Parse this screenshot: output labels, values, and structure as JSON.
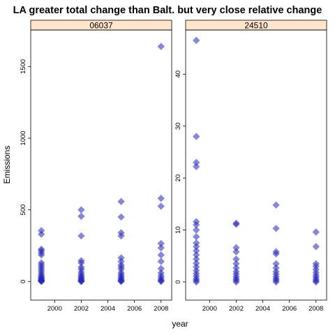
{
  "chart_data": {
    "type": "scatter",
    "title": "LA greater total change than Balt. but very close relative change",
    "xlabel": "year",
    "ylabel": "Emissions",
    "marker_color": "#2424b8",
    "strip_color": "#ffe5cc",
    "panels": [
      {
        "label": "06037",
        "xlim": [
          1998.2,
          2008.8
        ],
        "ylim": [
          -130,
          1755
        ],
        "x_ticks": [
          2000,
          2002,
          2004,
          2006,
          2008
        ],
        "y_ticks": [
          0,
          500,
          1000,
          1500
        ],
        "points": [
          [
            1999,
            355
          ],
          [
            1999,
            330
          ],
          [
            1999,
            225
          ],
          [
            1999,
            215
          ],
          [
            1999,
            200
          ],
          [
            1999,
            185
          ],
          [
            1999,
            130
          ],
          [
            1999,
            115
          ],
          [
            1999,
            100
          ],
          [
            1999,
            85
          ],
          [
            1999,
            70
          ],
          [
            1999,
            55
          ],
          [
            1999,
            42
          ],
          [
            1999,
            32
          ],
          [
            1999,
            25
          ],
          [
            1999,
            18
          ],
          [
            1999,
            12
          ],
          [
            1999,
            8
          ],
          [
            1999,
            5
          ],
          [
            1999,
            2
          ],
          [
            1999,
            0
          ],
          [
            2002,
            500
          ],
          [
            2002,
            455
          ],
          [
            2002,
            318
          ],
          [
            2002,
            145
          ],
          [
            2002,
            130
          ],
          [
            2002,
            100
          ],
          [
            2002,
            85
          ],
          [
            2002,
            65
          ],
          [
            2002,
            50
          ],
          [
            2002,
            38
          ],
          [
            2002,
            28
          ],
          [
            2002,
            20
          ],
          [
            2002,
            12
          ],
          [
            2002,
            6
          ],
          [
            2002,
            2
          ],
          [
            2002,
            0
          ],
          [
            2005,
            558
          ],
          [
            2005,
            450
          ],
          [
            2005,
            340
          ],
          [
            2005,
            318
          ],
          [
            2005,
            165
          ],
          [
            2005,
            140
          ],
          [
            2005,
            115
          ],
          [
            2005,
            100
          ],
          [
            2005,
            85
          ],
          [
            2005,
            62
          ],
          [
            2005,
            48
          ],
          [
            2005,
            35
          ],
          [
            2005,
            25
          ],
          [
            2005,
            15
          ],
          [
            2005,
            8
          ],
          [
            2005,
            3
          ],
          [
            2005,
            0
          ],
          [
            2008,
            1640
          ],
          [
            2008,
            580
          ],
          [
            2008,
            525
          ],
          [
            2008,
            265
          ],
          [
            2008,
            235
          ],
          [
            2008,
            185
          ],
          [
            2008,
            140
          ],
          [
            2008,
            90
          ],
          [
            2008,
            60
          ],
          [
            2008,
            40
          ],
          [
            2008,
            25
          ],
          [
            2008,
            12
          ],
          [
            2008,
            5
          ],
          [
            2008,
            0
          ]
        ]
      },
      {
        "label": "24510",
        "xlim": [
          1998.2,
          2008.8
        ],
        "ylim": [
          -3.5,
          48.5
        ],
        "x_ticks": [
          2000,
          2002,
          2004,
          2006,
          2008
        ],
        "y_ticks": [
          0,
          10,
          20,
          30,
          40
        ],
        "points": [
          [
            1999,
            46.5
          ],
          [
            1999,
            28
          ],
          [
            1999,
            23
          ],
          [
            1999,
            22.2
          ],
          [
            1999,
            11.6
          ],
          [
            1999,
            11
          ],
          [
            1999,
            10
          ],
          [
            1999,
            8.7
          ],
          [
            1999,
            7.5
          ],
          [
            1999,
            6.8
          ],
          [
            1999,
            6
          ],
          [
            1999,
            5.2
          ],
          [
            1999,
            4.4
          ],
          [
            1999,
            3.6
          ],
          [
            1999,
            2.9
          ],
          [
            1999,
            2.2
          ],
          [
            1999,
            1.6
          ],
          [
            1999,
            1.1
          ],
          [
            1999,
            0.6
          ],
          [
            1999,
            0.3
          ],
          [
            1999,
            0
          ],
          [
            2002,
            11.3
          ],
          [
            2002,
            11.1
          ],
          [
            2002,
            6.6
          ],
          [
            2002,
            5.8
          ],
          [
            2002,
            4.4
          ],
          [
            2002,
            3.5
          ],
          [
            2002,
            2.7
          ],
          [
            2002,
            2
          ],
          [
            2002,
            1.5
          ],
          [
            2002,
            1
          ],
          [
            2002,
            0.6
          ],
          [
            2002,
            0.3
          ],
          [
            2002,
            0
          ],
          [
            2005,
            14.8
          ],
          [
            2005,
            10.3
          ],
          [
            2005,
            5.8
          ],
          [
            2005,
            5.4
          ],
          [
            2005,
            3.5
          ],
          [
            2005,
            2.7
          ],
          [
            2005,
            2
          ],
          [
            2005,
            1.5
          ],
          [
            2005,
            1
          ],
          [
            2005,
            0.6
          ],
          [
            2005,
            0.3
          ],
          [
            2005,
            0
          ],
          [
            2008,
            9.6
          ],
          [
            2008,
            6.8
          ],
          [
            2008,
            3.5
          ],
          [
            2008,
            3
          ],
          [
            2008,
            2.4
          ],
          [
            2008,
            1.8
          ],
          [
            2008,
            1.3
          ],
          [
            2008,
            0.9
          ],
          [
            2008,
            0.5
          ],
          [
            2008,
            0.2
          ],
          [
            2008,
            0
          ]
        ]
      }
    ]
  }
}
